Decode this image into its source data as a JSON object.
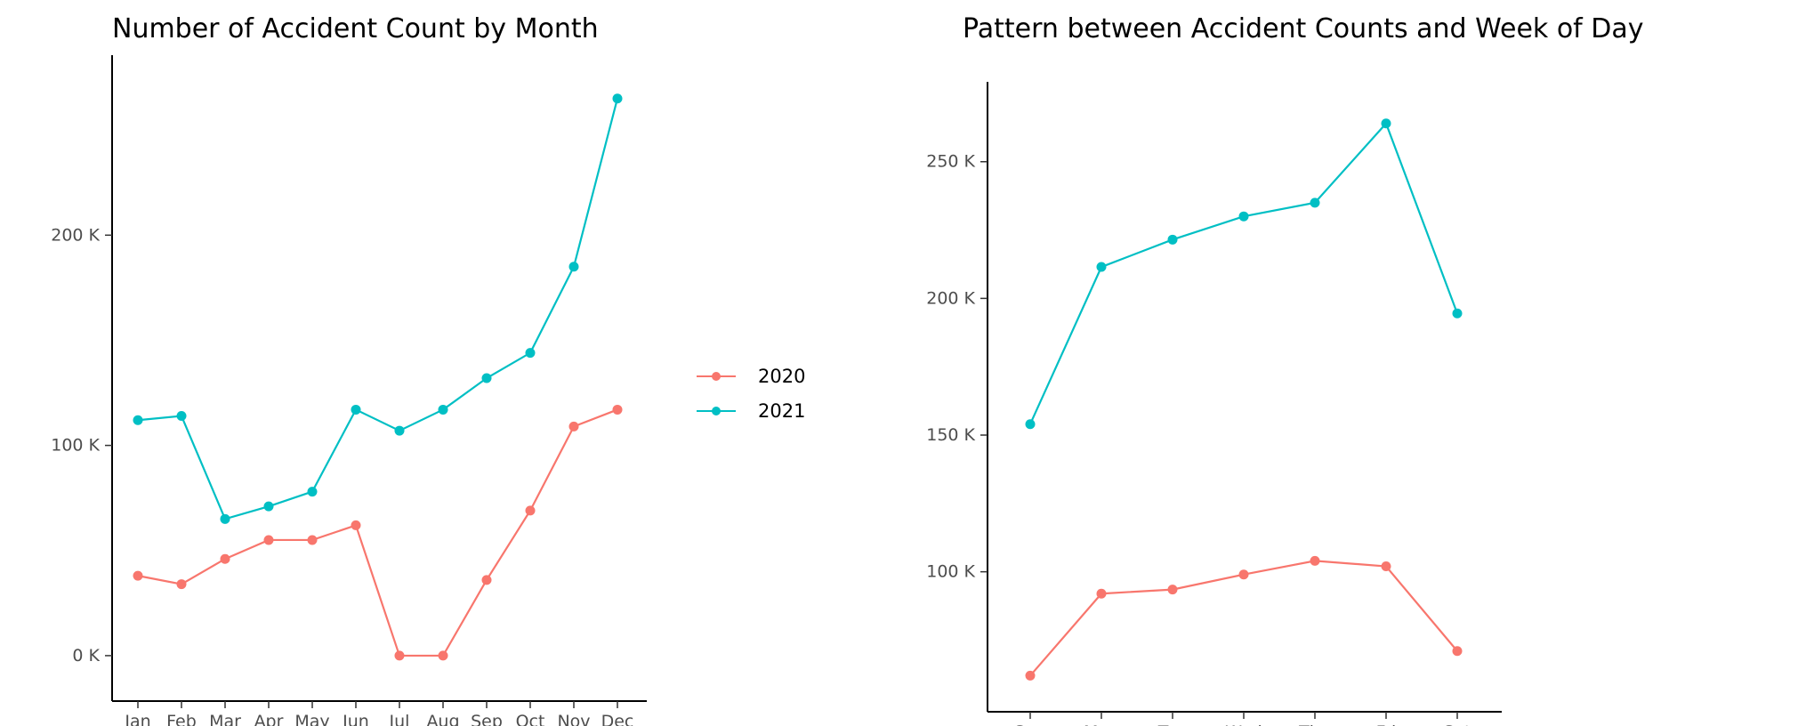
{
  "chart_data": [
    {
      "type": "line",
      "title": "Number of Accident Count by Month",
      "xlabel": "",
      "ylabel": "",
      "categories": [
        "Jan",
        "Feb",
        "Mar",
        "Apr",
        "May",
        "Jun",
        "Jul",
        "Aug",
        "Sep",
        "Oct",
        "Nov",
        "Dec"
      ],
      "y_ticks": [
        0,
        100000,
        200000
      ],
      "y_tick_labels": [
        "0 K",
        "100 K",
        "200 K"
      ],
      "ylim": [
        -14000,
        278000
      ],
      "grid": false,
      "legend": "right",
      "series": [
        {
          "name": "2020",
          "color": "#F8766D",
          "values": [
            38000,
            34000,
            46000,
            55000,
            55000,
            62000,
            0,
            0,
            36000,
            69000,
            109000,
            117000
          ]
        },
        {
          "name": "2021",
          "color": "#00BFC4",
          "values": [
            112000,
            114000,
            65000,
            71000,
            78000,
            117000,
            107000,
            117000,
            132000,
            144000,
            185000,
            265000
          ]
        }
      ]
    },
    {
      "type": "line",
      "title": "Pattern between Accident Counts and Week of Day",
      "xlabel": "",
      "ylabel": "",
      "categories": [
        "Sun",
        "Mon",
        "Tue",
        "Wed",
        "Thu",
        "Fri",
        "Sat"
      ],
      "y_ticks": [
        100000,
        150000,
        200000,
        250000
      ],
      "y_tick_labels": [
        "100 K",
        "150 K",
        "200 K",
        "250 K"
      ],
      "ylim": [
        54000,
        274000
      ],
      "grid": false,
      "legend": "none",
      "series": [
        {
          "name": "2020",
          "color": "#F8766D",
          "values": [
            62000,
            92000,
            93500,
            99000,
            104000,
            102000,
            71000
          ]
        },
        {
          "name": "2021",
          "color": "#00BFC4",
          "values": [
            154000,
            211500,
            221500,
            230000,
            235000,
            264000,
            194500
          ]
        }
      ]
    }
  ]
}
